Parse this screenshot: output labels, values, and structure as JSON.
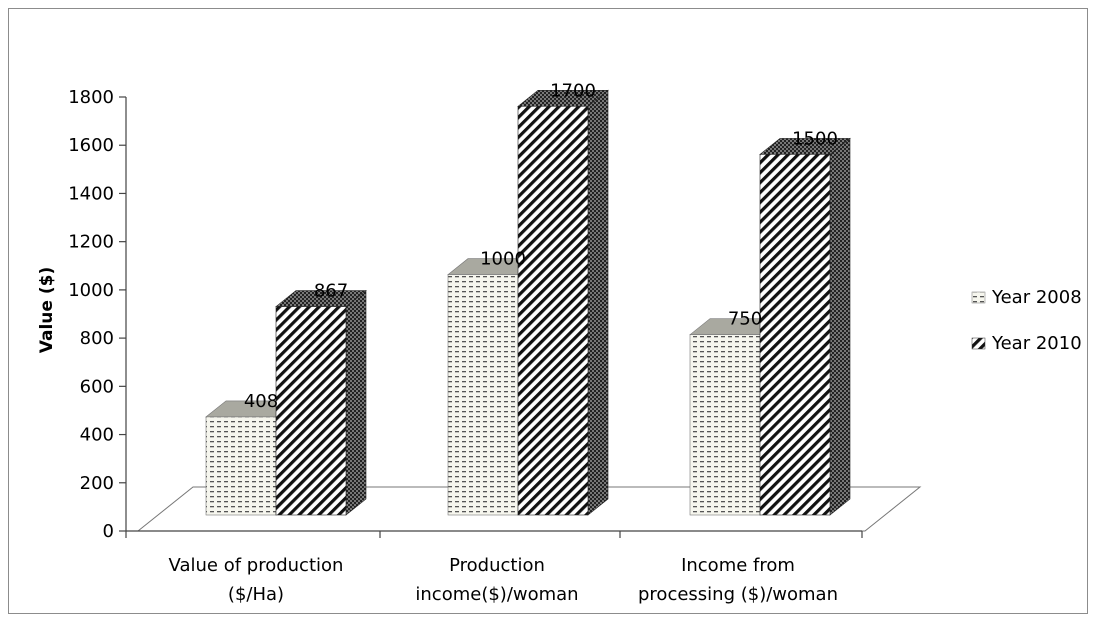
{
  "chart_data": {
    "type": "bar",
    "ylabel": "Value ($)",
    "ylim": [
      0,
      1800
    ],
    "yticks": [
      "0",
      "200",
      "400",
      "600",
      "800",
      "1000",
      "1200",
      "1400",
      "1600",
      "1800"
    ],
    "categories": [
      [
        "Value of production",
        "($/Ha)"
      ],
      [
        "Production",
        "income($)/woman"
      ],
      [
        "Income from",
        "processing ($)/woman"
      ]
    ],
    "series": [
      {
        "name": "Year 2008",
        "values": [
          408,
          1000,
          750
        ]
      },
      {
        "name": "Year 2010",
        "values": [
          867,
          1700,
          1500
        ]
      }
    ],
    "legend_position": "right",
    "grid": false,
    "style": "3d"
  }
}
